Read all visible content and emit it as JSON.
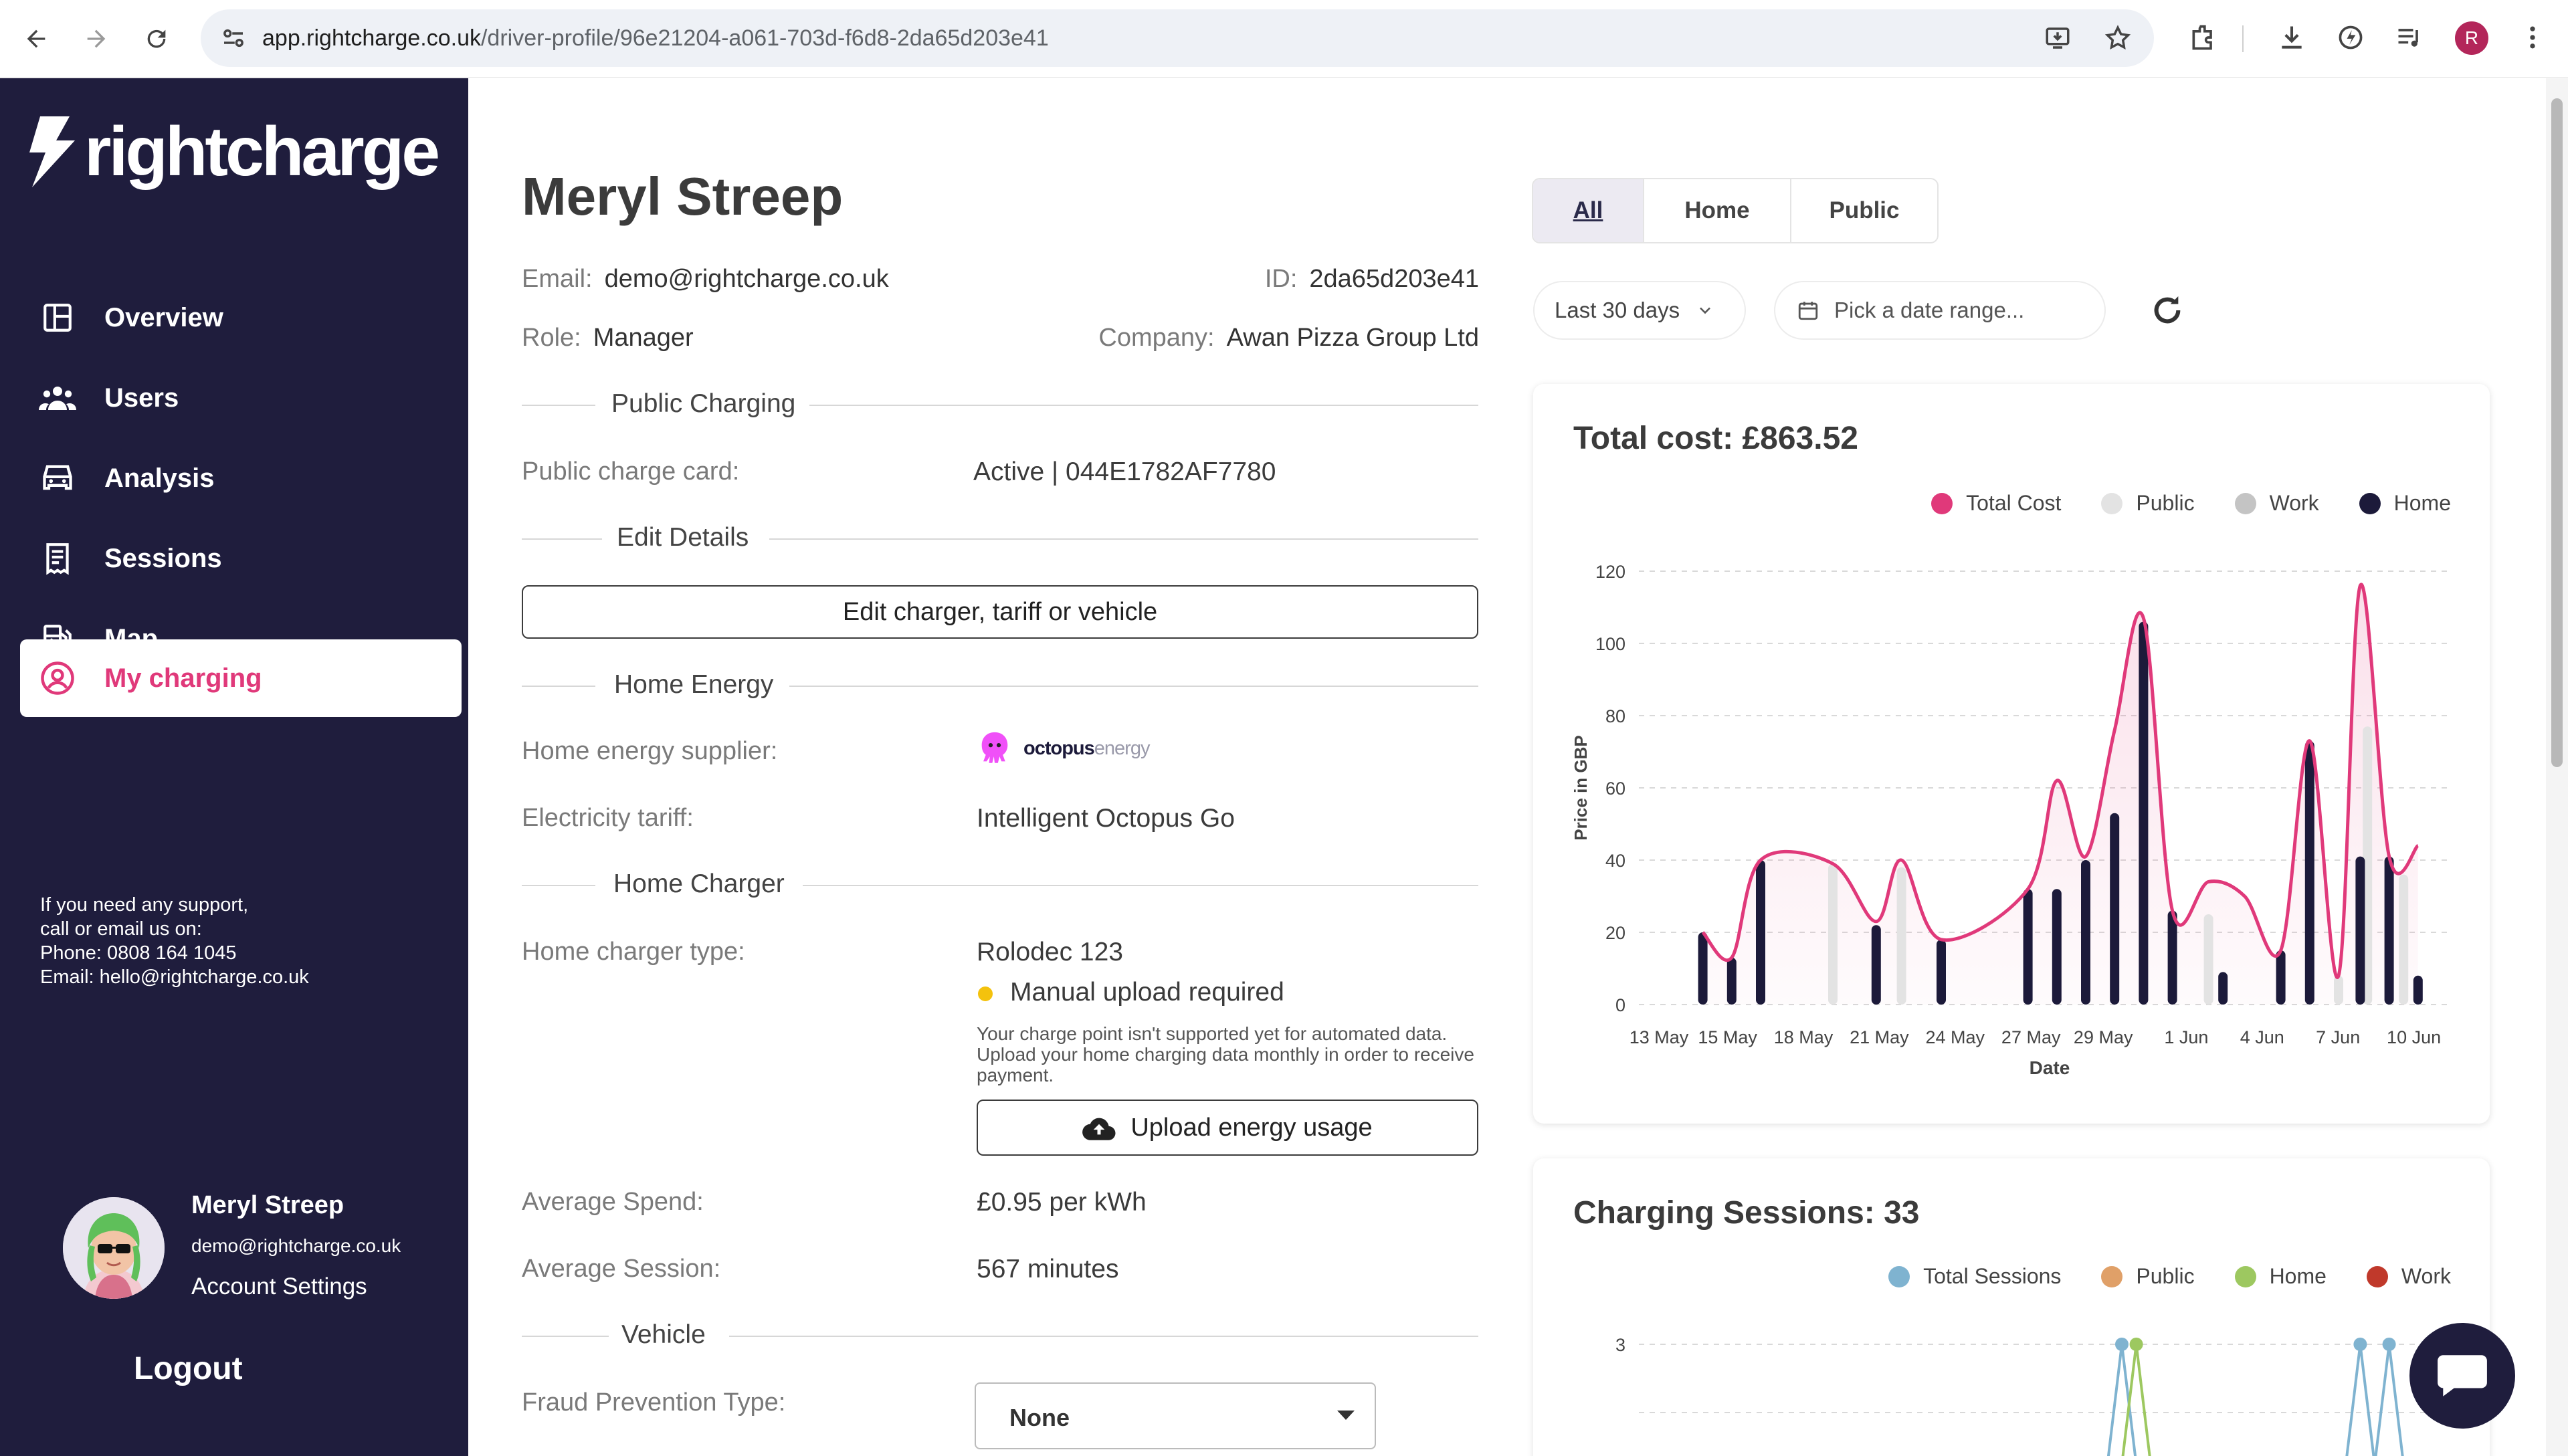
{
  "browser": {
    "url_host": "app.rightcharge.co.uk",
    "url_path": "/driver-profile/96e21204-a061-703d-f6d8-2da65d203e41",
    "profile_initial": "R"
  },
  "sidebar": {
    "logo": "rightcharge",
    "items": [
      {
        "label": "Overview",
        "icon": "overview-icon"
      },
      {
        "label": "Users",
        "icon": "users-icon"
      },
      {
        "label": "Analysis",
        "icon": "car-icon"
      },
      {
        "label": "Sessions",
        "icon": "receipt-icon"
      },
      {
        "label": "Map",
        "icon": "fuel-station-icon"
      },
      {
        "label": "My charging",
        "icon": "user-circle-icon"
      }
    ],
    "support": {
      "line1": "If you need any support,",
      "line2": "call or email us on:",
      "line3": "Phone: 0808 164 1045",
      "line4": "Email: hello@rightcharge.co.uk"
    },
    "user": {
      "name": "Meryl Streep",
      "email": "demo@rightcharge.co.uk",
      "account_settings": "Account Settings"
    },
    "logout": "Logout"
  },
  "profile": {
    "name": "Meryl Streep",
    "email_label": "Email:",
    "email": "demo@rightcharge.co.uk",
    "id_label": "ID:",
    "id": "2da65d203e41",
    "role_label": "Role:",
    "role": "Manager",
    "company_label": "Company:",
    "company": "Awan Pizza Group Ltd",
    "public_charging": {
      "title": "Public Charging",
      "card_label": "Public charge card:",
      "card_value": "Active | 044E1782AF7780"
    },
    "edit_details": {
      "title": "Edit Details",
      "button": "Edit charger, tariff or vehicle"
    },
    "home_energy": {
      "title": "Home Energy",
      "supplier_label": "Home energy supplier:",
      "supplier_logo_a": "octopus",
      "supplier_logo_b": "energy",
      "tariff_label": "Electricity tariff:",
      "tariff": "Intelligent Octopus Go"
    },
    "home_charger": {
      "title": "Home Charger",
      "type_label": "Home charger type:",
      "type": "Rolodec 123",
      "status": "Manual upload required",
      "note": "Your charge point isn't supported yet for automated data. Upload your home charging data monthly in order to receive payment.",
      "upload_button": "Upload energy usage"
    },
    "avg_spend_label": "Average Spend:",
    "avg_spend": "£0.95 per kWh",
    "avg_session_label": "Average Session:",
    "avg_session": "567 minutes",
    "vehicle": {
      "title": "Vehicle",
      "fraud_label": "Fraud Prevention Type:",
      "fraud_value": "None"
    }
  },
  "filters": {
    "tabs": [
      "All",
      "Home",
      "Public"
    ],
    "active_tab": "All",
    "period": "Last 30 days",
    "date_placeholder": "Pick a date range..."
  },
  "colors": {
    "sidebar_bg": "#1f1d3d",
    "accent_pink": "#e0397a",
    "home_bar": "#1c1a3a",
    "public_bar": "#e3e3e3"
  },
  "chart_data": [
    {
      "type": "bar",
      "title": "Total cost: £863.52",
      "xlabel": "Date",
      "ylabel": "Price in GBP",
      "ylim": [
        0,
        120
      ],
      "yticks": [
        0,
        20,
        40,
        60,
        80,
        100,
        120
      ],
      "xtick_labels": [
        "13 May",
        "15 May",
        "18 May",
        "21 May",
        "24 May",
        "27 May",
        "29 May",
        "1 Jun",
        "4 Jun",
        "7 Jun",
        "10 Jun"
      ],
      "legend": [
        "Total Cost",
        "Public",
        "Work",
        "Home"
      ],
      "legend_colors": [
        "#e0397a",
        "#e3e3e3",
        "#c4c4c4",
        "#1c1a3a"
      ],
      "grid": "horizontal dashed",
      "series": [
        {
          "name": "Home",
          "points": [
            [
              1.4,
              20
            ],
            [
              2.2,
              13
            ],
            [
              3.0,
              40
            ],
            [
              6.2,
              22
            ],
            [
              8.0,
              18
            ],
            [
              10.4,
              32
            ],
            [
              11.2,
              32
            ],
            [
              12.0,
              40
            ],
            [
              12.8,
              53
            ],
            [
              13.6,
              106
            ],
            [
              14.4,
              26
            ],
            [
              15.8,
              9
            ],
            [
              17.4,
              15
            ],
            [
              18.2,
              73
            ],
            [
              19.6,
              41
            ],
            [
              20.4,
              41
            ],
            [
              21.2,
              8
            ]
          ]
        },
        {
          "name": "Public",
          "points": [
            [
              5.0,
              39
            ],
            [
              6.9,
              38
            ],
            [
              15.4,
              25
            ],
            [
              19.0,
              8
            ],
            [
              19.8,
              77
            ],
            [
              20.8,
              36
            ]
          ]
        },
        {
          "name": "Total Cost",
          "points": [
            [
              1.4,
              20
            ],
            [
              2.2,
              13
            ],
            [
              3.0,
              40
            ],
            [
              5.0,
              39
            ],
            [
              6.2,
              23
            ],
            [
              6.9,
              40
            ],
            [
              8.0,
              18
            ],
            [
              10.4,
              32
            ],
            [
              11.2,
              62
            ],
            [
              12.0,
              41
            ],
            [
              12.8,
              76
            ],
            [
              13.6,
              107
            ],
            [
              14.4,
              26
            ],
            [
              15.4,
              34
            ],
            [
              16.4,
              30
            ],
            [
              17.4,
              15
            ],
            [
              18.2,
              73
            ],
            [
              19.0,
              8
            ],
            [
              19.6,
              116
            ],
            [
              20.4,
              41
            ],
            [
              21.2,
              44
            ]
          ]
        }
      ]
    },
    {
      "type": "line",
      "title": "Charging Sessions: 33",
      "legend": [
        "Total Sessions",
        "Public",
        "Home",
        "Work"
      ],
      "legend_colors": [
        "#7fb3d0",
        "#e0a068",
        "#9dc860",
        "#c0392b"
      ],
      "yticks": [
        3
      ],
      "series": [
        {
          "name": "Total Sessions",
          "points": [
            [
              13.0,
              3
            ],
            [
              19.6,
              3
            ],
            [
              20.4,
              3
            ]
          ]
        },
        {
          "name": "Home",
          "points": [
            [
              13.4,
              3
            ]
          ]
        }
      ]
    }
  ]
}
